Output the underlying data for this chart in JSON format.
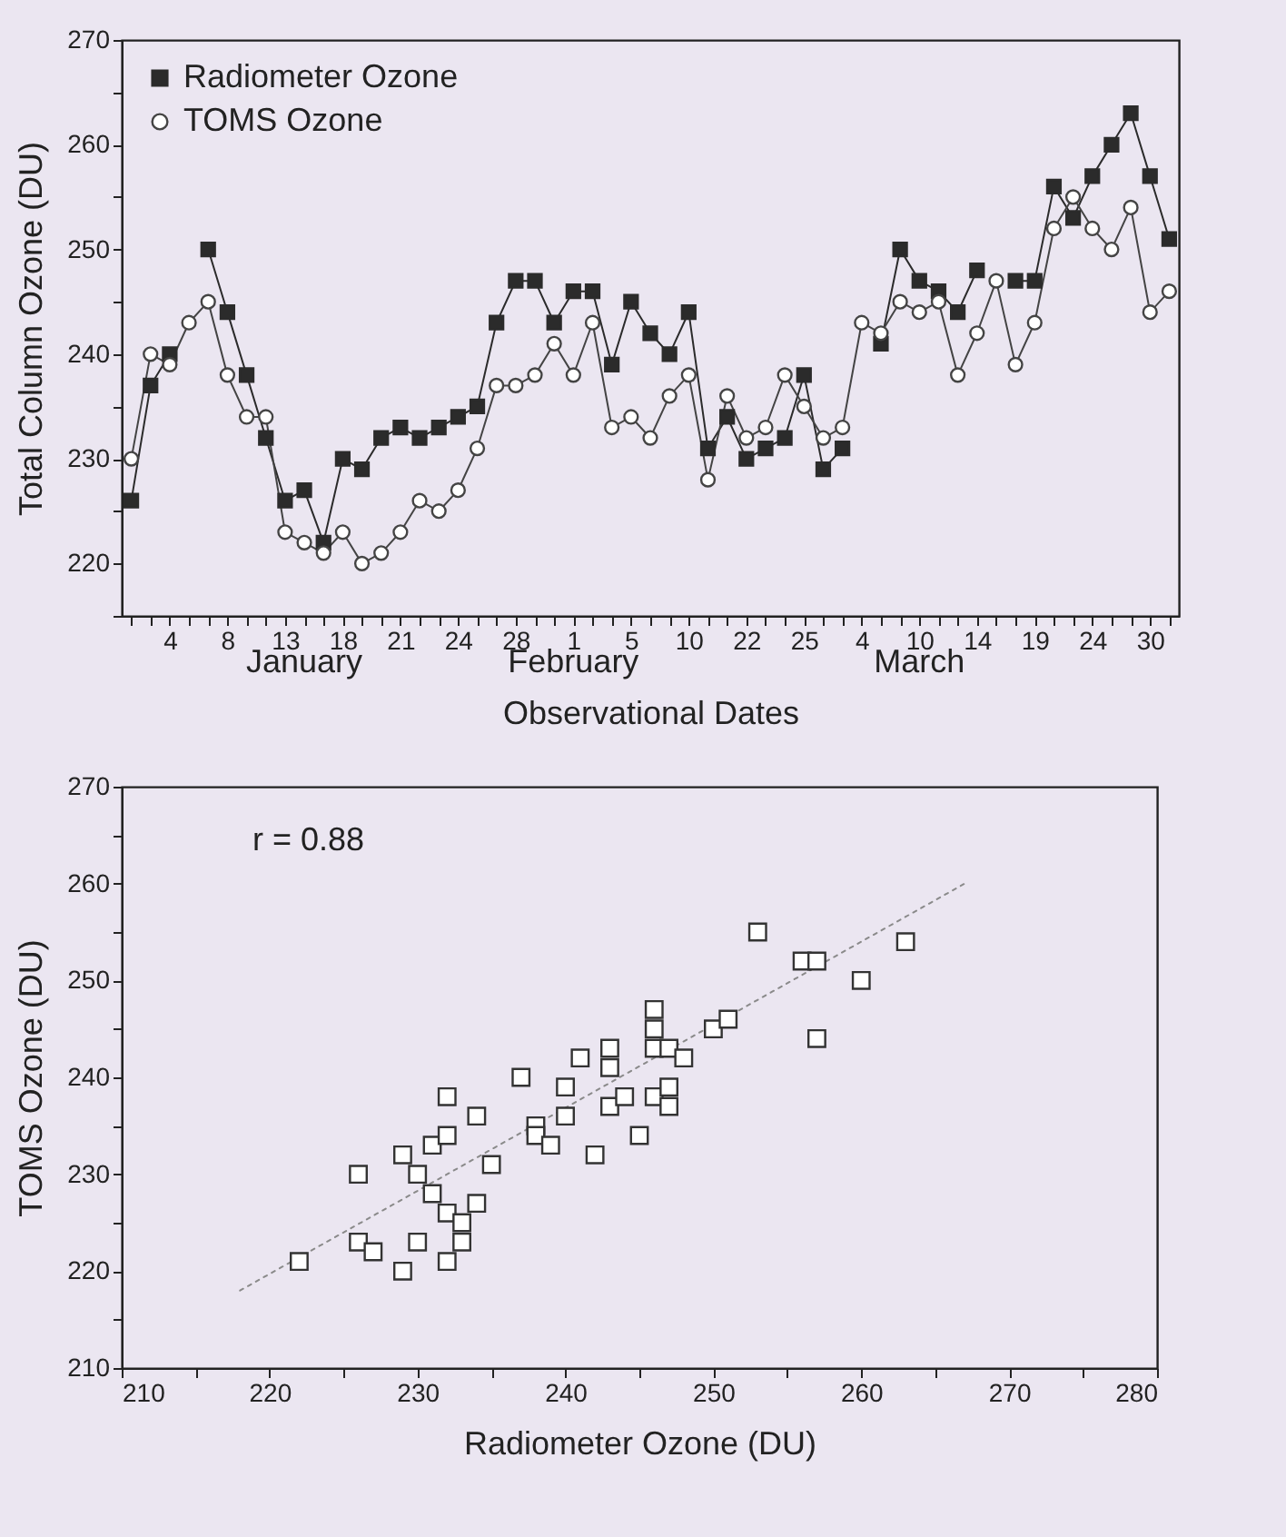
{
  "chart_data": [
    {
      "type": "line",
      "xlabel": "Observational Dates",
      "ylabel": "Total Column Ozone (DU)",
      "legend": "top left",
      "ylim": [
        215,
        270
      ],
      "yticks": [
        {
          "value": 215,
          "label": null
        },
        220,
        {
          "value": 225,
          "label": null
        },
        230,
        {
          "value": 235,
          "label": null
        },
        240,
        {
          "value": 245,
          "label": null
        },
        250,
        {
          "value": 255,
          "label": null
        },
        260,
        {
          "value": 265,
          "label": null
        },
        270
      ],
      "categories": [
        null,
        null,
        "4",
        null,
        null,
        "8",
        null,
        null,
        "13",
        null,
        null,
        "18",
        null,
        null,
        "21",
        null,
        null,
        "24",
        null,
        null,
        "28",
        null,
        null,
        "1",
        null,
        null,
        "5",
        null,
        null,
        "10",
        null,
        null,
        "22",
        null,
        null,
        "25",
        null,
        null,
        "4",
        null,
        null,
        "10",
        null,
        null,
        "14",
        null,
        null,
        "19",
        null,
        null,
        "24",
        null,
        null,
        "30",
        null
      ],
      "annotations": [
        "January",
        "February",
        "March"
      ],
      "series": [
        {
          "name": "Radiometer Ozone",
          "color": "#2b2b2b",
          "marker": "square",
          "values": [
            226,
            237,
            240,
            null,
            250,
            244,
            238,
            232,
            226,
            227,
            222,
            230,
            229,
            232,
            233,
            232,
            233,
            234,
            235,
            243,
            247,
            247,
            243,
            246,
            246,
            239,
            245,
            242,
            240,
            244,
            231,
            234,
            230,
            231,
            232,
            238,
            229,
            231,
            null,
            241,
            250,
            247,
            246,
            244,
            248,
            null,
            247,
            247,
            256,
            253,
            257,
            260,
            263,
            257,
            251
          ]
        },
        {
          "name": "TOMS Ozone",
          "color": "#444444",
          "marker": "circle",
          "values": [
            230,
            240,
            239,
            243,
            245,
            238,
            234,
            234,
            223,
            222,
            221,
            223,
            220,
            221,
            223,
            226,
            225,
            227,
            231,
            237,
            237,
            238,
            241,
            238,
            243,
            233,
            234,
            232,
            236,
            238,
            228,
            236,
            232,
            233,
            238,
            235,
            232,
            233,
            243,
            242,
            245,
            244,
            245,
            238,
            242,
            247,
            239,
            243,
            252,
            255,
            252,
            250,
            254,
            244,
            246
          ]
        }
      ]
    },
    {
      "type": "scatter",
      "xlabel": "Radiometer Ozone (DU)",
      "ylabel": "TOMS Ozone (DU)",
      "xlim": [
        210,
        280
      ],
      "ylim": [
        210,
        270
      ],
      "xticks": [
        210,
        {
          "value": 215,
          "label": null
        },
        220,
        {
          "value": 225,
          "label": null
        },
        230,
        {
          "value": 235,
          "label": null
        },
        240,
        {
          "value": 245,
          "label": null
        },
        250,
        {
          "value": 255,
          "label": null
        },
        260,
        {
          "value": 265,
          "label": null
        },
        270,
        {
          "value": 275,
          "label": null
        },
        280
      ],
      "yticks": [
        210,
        {
          "value": 215,
          "label": null
        },
        220,
        {
          "value": 225,
          "label": null
        },
        230,
        {
          "value": 235,
          "label": null
        },
        240,
        {
          "value": 245,
          "label": null
        },
        250,
        {
          "value": 255,
          "label": null
        },
        260,
        {
          "value": 265,
          "label": null
        },
        270
      ],
      "annotations": [
        "r = 0.88"
      ],
      "series": [
        {
          "color": "#333333",
          "marker": "square",
          "x": [
            222,
            226,
            226,
            227,
            229,
            229,
            230,
            230,
            231,
            231,
            232,
            232,
            232,
            232,
            233,
            233,
            234,
            234,
            235,
            237,
            238,
            238,
            239,
            240,
            240,
            241,
            242,
            243,
            243,
            243,
            244,
            245,
            246,
            246,
            246,
            247,
            246,
            247,
            247,
            248,
            250,
            251,
            253,
            256,
            257,
            257,
            260,
            263
          ],
          "values": [
            221,
            230,
            223,
            222,
            232,
            220,
            230,
            223,
            233,
            228,
            238,
            234,
            226,
            221,
            225,
            223,
            236,
            227,
            231,
            240,
            235,
            234,
            233,
            239,
            236,
            242,
            232,
            243,
            241,
            237,
            238,
            234,
            247,
            245,
            243,
            243,
            238,
            239,
            237,
            242,
            245,
            246,
            255,
            252,
            252,
            244,
            250,
            254
          ]
        },
        {
          "type": "line",
          "color": "#8a8a8a",
          "line_style": "dotted",
          "x": [
            218,
            267
          ],
          "values": [
            218,
            260
          ]
        }
      ]
    }
  ]
}
